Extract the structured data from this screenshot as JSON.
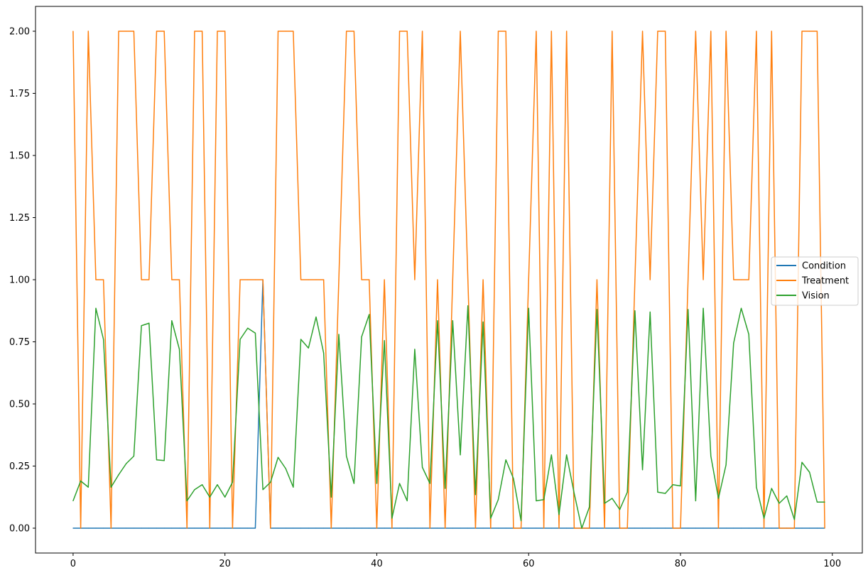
{
  "chart_data": {
    "type": "line",
    "title": "",
    "xlabel": "",
    "ylabel": "",
    "xlim": [
      -4.95,
      103.95
    ],
    "ylim": [
      -0.1,
      2.1
    ],
    "xticks": [
      0,
      20,
      40,
      60,
      80,
      100
    ],
    "yticks": [
      0.0,
      0.25,
      0.5,
      0.75,
      1.0,
      1.25,
      1.5,
      1.75,
      2.0
    ],
    "xtick_labels": [
      "0",
      "20",
      "40",
      "60",
      "80",
      "100"
    ],
    "ytick_labels": [
      "0.00",
      "0.25",
      "0.50",
      "0.75",
      "1.00",
      "1.25",
      "1.50",
      "1.75",
      "2.00"
    ],
    "grid": false,
    "legend_position": "center-right",
    "x": [
      0,
      1,
      2,
      3,
      4,
      5,
      6,
      7,
      8,
      9,
      10,
      11,
      12,
      13,
      14,
      15,
      16,
      17,
      18,
      19,
      20,
      21,
      22,
      23,
      24,
      25,
      26,
      27,
      28,
      29,
      30,
      31,
      32,
      33,
      34,
      35,
      36,
      37,
      38,
      39,
      40,
      41,
      42,
      43,
      44,
      45,
      46,
      47,
      48,
      49,
      50,
      51,
      52,
      53,
      54,
      55,
      56,
      57,
      58,
      59,
      60,
      61,
      62,
      63,
      64,
      65,
      66,
      67,
      68,
      69,
      70,
      71,
      72,
      73,
      74,
      75,
      76,
      77,
      78,
      79,
      80,
      81,
      82,
      83,
      84,
      85,
      86,
      87,
      88,
      89,
      90,
      91,
      92,
      93,
      94,
      95,
      96,
      97,
      98,
      99
    ],
    "series": [
      {
        "name": "Condition",
        "color": "#1f77b4",
        "values": [
          0,
          0,
          0,
          0,
          0,
          0,
          0,
          0,
          0,
          0,
          0,
          0,
          0,
          0,
          0,
          0,
          0,
          0,
          0,
          0,
          0,
          0,
          0,
          0,
          0,
          1,
          0,
          0,
          0,
          0,
          0,
          0,
          0,
          0,
          0,
          0,
          0,
          0,
          0,
          0,
          0,
          0,
          0,
          0,
          0,
          0,
          0,
          0,
          0,
          0,
          0,
          0,
          0,
          0,
          0,
          0,
          0,
          0,
          0,
          0,
          0,
          0,
          0,
          0,
          0,
          0,
          0,
          0,
          0,
          0,
          0,
          0,
          0,
          0,
          0,
          0,
          0,
          0,
          0,
          0,
          0,
          0,
          0,
          0,
          0,
          0,
          0,
          0,
          0,
          0,
          0,
          0,
          0,
          0,
          0,
          0,
          0,
          0,
          0,
          0
        ]
      },
      {
        "name": "Treatment",
        "color": "#ff7f0e",
        "values": [
          2,
          0,
          2,
          1,
          1,
          0,
          2,
          2,
          2,
          1,
          1,
          2,
          2,
          1,
          1,
          0,
          2,
          2,
          0,
          2,
          2,
          0,
          1,
          1,
          1,
          1,
          0,
          2,
          2,
          2,
          1,
          1,
          1,
          1,
          0,
          1,
          2,
          2,
          1,
          1,
          0,
          1,
          0,
          2,
          2,
          1,
          2,
          0,
          1,
          0,
          1,
          2,
          1,
          0,
          1,
          0,
          2,
          2,
          0,
          0,
          1,
          2,
          0,
          2,
          0,
          2,
          0,
          0,
          0,
          1,
          0,
          2,
          0,
          0,
          1,
          2,
          1,
          2,
          2,
          0,
          0,
          1,
          2,
          1,
          2,
          0,
          2,
          1,
          1,
          1,
          2,
          0,
          2,
          0,
          0,
          0,
          2,
          2,
          2,
          0
        ]
      },
      {
        "name": "Vision",
        "color": "#2ca02c",
        "values": [
          0.11,
          0.19,
          0.165,
          0.885,
          0.76,
          0.165,
          0.215,
          0.26,
          0.29,
          0.815,
          0.825,
          0.275,
          0.272,
          0.835,
          0.72,
          0.11,
          0.155,
          0.175,
          0.125,
          0.175,
          0.125,
          0.185,
          0.76,
          0.805,
          0.785,
          0.155,
          0.185,
          0.285,
          0.24,
          0.165,
          0.76,
          0.725,
          0.85,
          0.705,
          0.125,
          0.78,
          0.29,
          0.18,
          0.77,
          0.86,
          0.18,
          0.755,
          0.04,
          0.18,
          0.11,
          0.72,
          0.245,
          0.18,
          0.835,
          0.16,
          0.835,
          0.295,
          0.895,
          0.135,
          0.83,
          0.04,
          0.115,
          0.275,
          0.2,
          0.03,
          0.885,
          0.11,
          0.115,
          0.295,
          0.055,
          0.295,
          0.14,
          0.0,
          0.085,
          0.88,
          0.1,
          0.12,
          0.075,
          0.145,
          0.875,
          0.235,
          0.87,
          0.145,
          0.14,
          0.175,
          0.17,
          0.88,
          0.11,
          0.885,
          0.29,
          0.12,
          0.255,
          0.745,
          0.885,
          0.78,
          0.165,
          0.04,
          0.16,
          0.1,
          0.13,
          0.035,
          0.265,
          0.225,
          0.105,
          0.105
        ]
      }
    ]
  }
}
